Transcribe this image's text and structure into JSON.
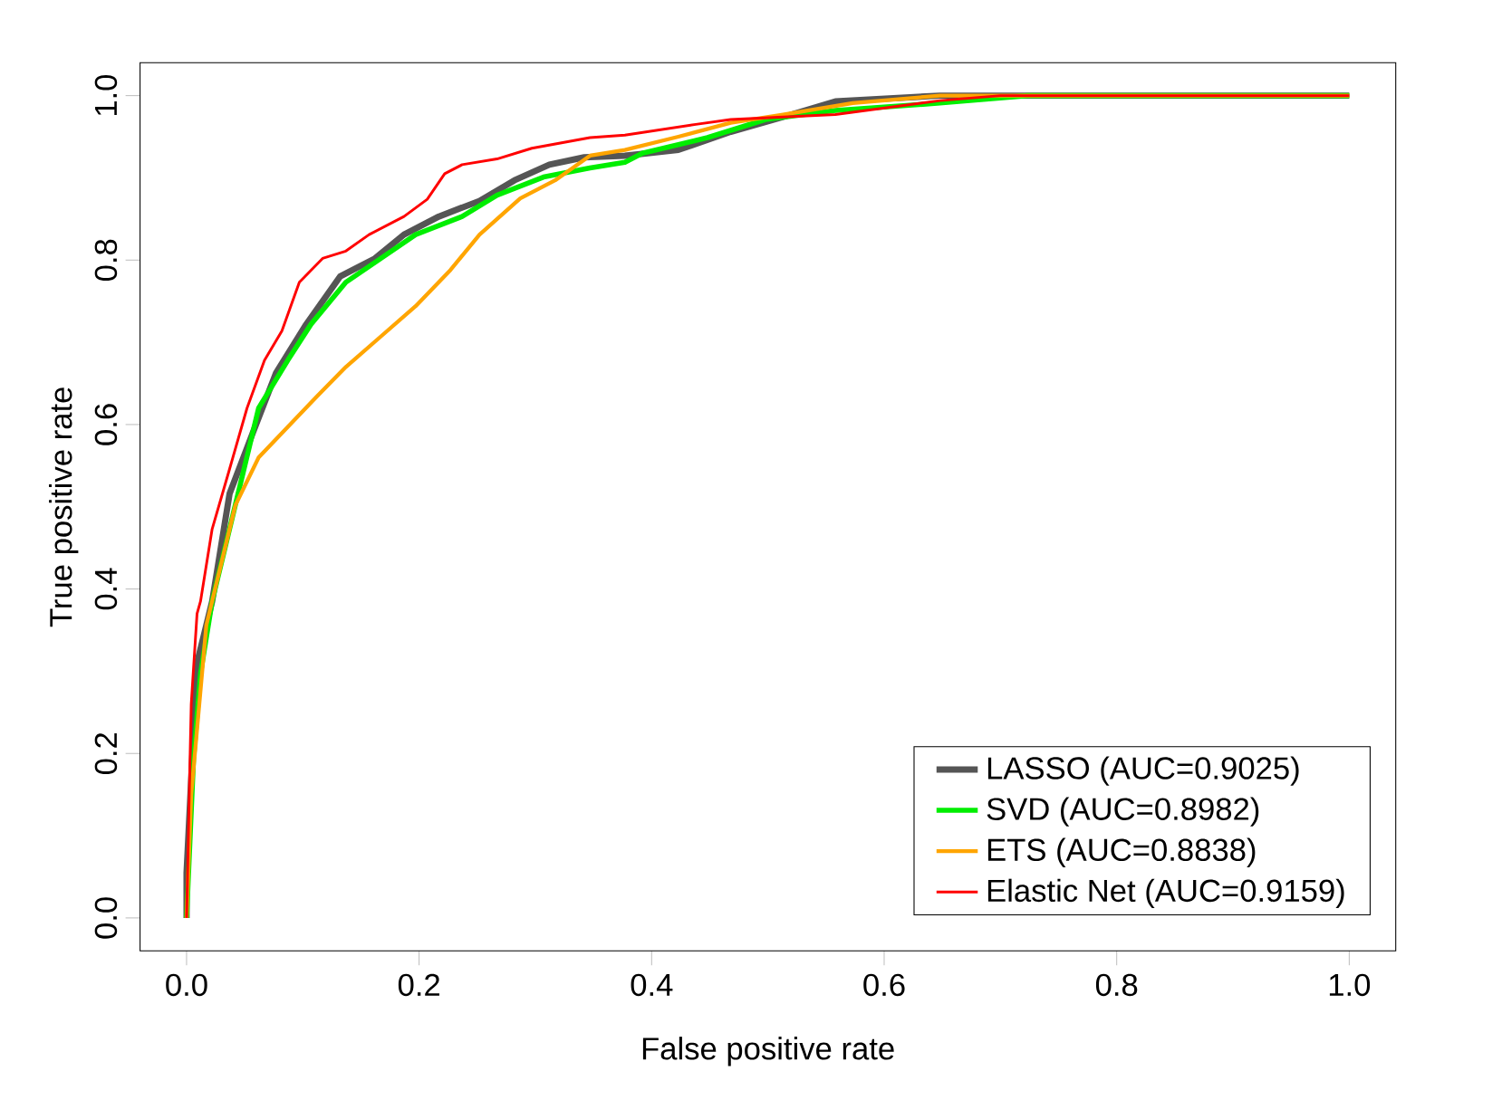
{
  "chart_data": {
    "type": "line",
    "xlabel": "False positive rate",
    "ylabel": "True positive rate",
    "xlim": [
      -0.04,
      1.04
    ],
    "ylim": [
      -0.04,
      1.04
    ],
    "xticks": [
      {
        "value": 0,
        "label": "0.0"
      },
      0.2,
      0.4,
      0.6,
      0.8,
      {
        "value": 1,
        "label": "1.0"
      }
    ],
    "yticks": [
      {
        "value": 0,
        "label": "0.0"
      },
      0.2,
      0.4,
      0.6,
      0.8,
      {
        "value": 1,
        "label": "1.0"
      }
    ],
    "grid": false,
    "legend": "bottom right",
    "marker": "none",
    "line_style": "solid",
    "series": [
      {
        "name": "LASSO (AUC=0.9025)",
        "color": "#555555",
        "x": [
          0,
          0,
          0.009,
          0.022,
          0.037,
          0.057,
          0.077,
          0.102,
          0.132,
          0.162,
          0.187,
          0.217,
          0.252,
          0.282,
          0.312,
          0.342,
          0.377,
          0.423,
          0.468,
          0.513,
          0.558,
          0.648,
          1
        ],
        "values": [
          0,
          0.055,
          0.31,
          0.385,
          0.516,
          0.59,
          0.663,
          0.72,
          0.78,
          0.802,
          0.831,
          0.853,
          0.872,
          0.897,
          0.916,
          0.925,
          0.927,
          0.934,
          0.956,
          0.974,
          0.993,
          1,
          1
        ]
      },
      {
        "name": "SVD (AUC=0.8982)",
        "color": "#00ee00",
        "x": [
          0,
          0.006,
          0.012,
          0.022,
          0.062,
          0.087,
          0.107,
          0.137,
          0.167,
          0.197,
          0.237,
          0.267,
          0.307,
          0.347,
          0.377,
          0.392,
          0.448,
          0.498,
          0.558,
          0.648,
          0.723,
          1
        ],
        "values": [
          0,
          0.194,
          0.297,
          0.385,
          0.62,
          0.678,
          0.722,
          0.773,
          0.802,
          0.831,
          0.853,
          0.879,
          0.901,
          0.912,
          0.919,
          0.93,
          0.949,
          0.971,
          0.982,
          0.991,
          1,
          1
        ]
      },
      {
        "name": "ETS (AUC=0.8838)",
        "color": "#ffa500",
        "x": [
          0,
          0.004,
          0.017,
          0.042,
          0.062,
          0.087,
          0.112,
          0.137,
          0.167,
          0.197,
          0.227,
          0.252,
          0.287,
          0.317,
          0.347,
          0.377,
          0.423,
          0.468,
          0.513,
          0.573,
          0.648,
          1
        ],
        "values": [
          0,
          0.15,
          0.356,
          0.502,
          0.56,
          0.597,
          0.634,
          0.67,
          0.707,
          0.744,
          0.788,
          0.831,
          0.875,
          0.897,
          0.927,
          0.934,
          0.95,
          0.967,
          0.977,
          0.991,
          1,
          1
        ]
      },
      {
        "name": "Elastic Net (AUC=0.9159)",
        "color": "#ff0000",
        "x": [
          0,
          0.004,
          0.009,
          0.012,
          0.022,
          0.037,
          0.052,
          0.067,
          0.082,
          0.097,
          0.117,
          0.137,
          0.157,
          0.187,
          0.207,
          0.222,
          0.237,
          0.267,
          0.297,
          0.347,
          0.377,
          0.438,
          0.468,
          0.558,
          0.648,
          0.7,
          1
        ],
        "values": [
          0,
          0.26,
          0.37,
          0.385,
          0.473,
          0.546,
          0.62,
          0.678,
          0.714,
          0.773,
          0.802,
          0.811,
          0.831,
          0.853,
          0.874,
          0.905,
          0.916,
          0.923,
          0.936,
          0.949,
          0.952,
          0.965,
          0.971,
          0.977,
          0.994,
          1,
          1
        ]
      }
    ]
  }
}
